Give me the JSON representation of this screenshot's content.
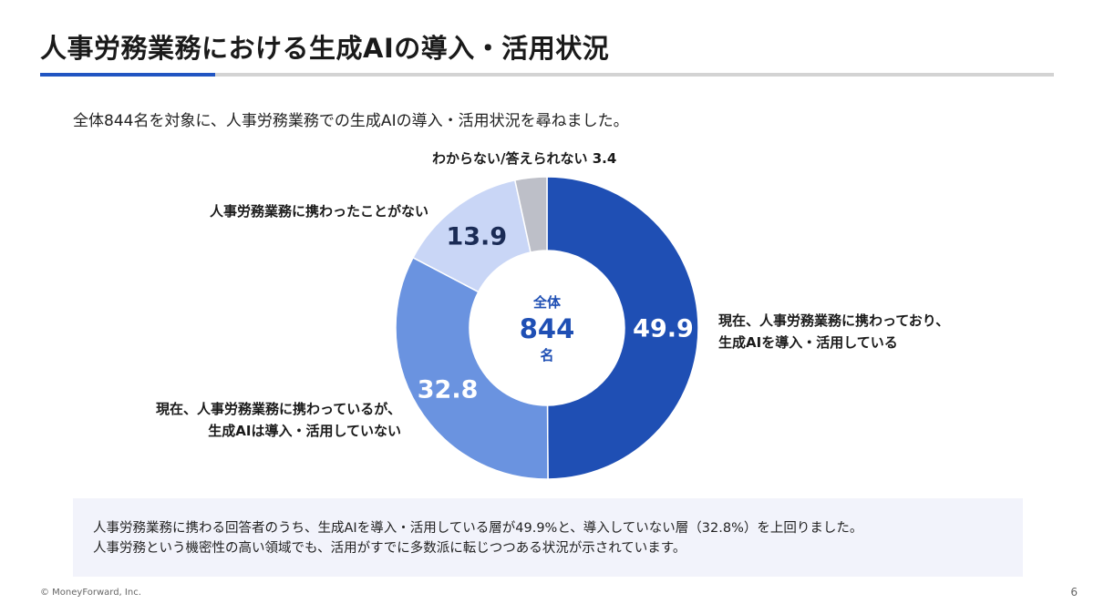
{
  "header": {
    "title": "人事労務業務における生成AIの導入・活用状況",
    "subtitle": "全体844名を対象に、人事労務業務での生成AIの導入・活用状況を尋ねました。"
  },
  "chart_data": {
    "type": "pie",
    "donut": true,
    "center": {
      "top": "全体",
      "value": "844",
      "unit": "名"
    },
    "slices": [
      {
        "label": "現在、人事労務業務に携わっており、生成AIを導入・活用している",
        "lines": [
          "現在、人事労務業務に携わっており、",
          "生成AIを導入・活用している"
        ],
        "value": 49.9,
        "value_text": "49.9",
        "color": "#1f4fb4"
      },
      {
        "label": "現在、人事労務業務に携わっているが、生成AIは導入・活用していない",
        "lines": [
          "現在、人事労務業務に携わっているが、",
          "生成AIは導入・活用していない"
        ],
        "value": 32.8,
        "value_text": "32.8",
        "color": "#6a93e0"
      },
      {
        "label": "人事労務業務に携わったことがない",
        "lines": [
          "人事労務業務に携わったことがない"
        ],
        "value": 13.9,
        "value_text": "13.9",
        "color": "#c9d6f6"
      },
      {
        "label": "わからない/答えられない",
        "lines": [
          "わからない/答えられない 3.4"
        ],
        "value": 3.4,
        "value_text": "3.4",
        "color": "#bdbfc8"
      }
    ]
  },
  "note": {
    "line1": "人事労務業務に携わる回答者のうち、生成AIを導入・活用している層が49.9%と、導入していない層（32.8%）を上回りました。",
    "line2": "人事労務という機密性の高い領域でも、活用がすでに多数派に転じつつある状況が示されています。"
  },
  "footer": {
    "copyright": "© MoneyForward, Inc.",
    "page": "6"
  }
}
